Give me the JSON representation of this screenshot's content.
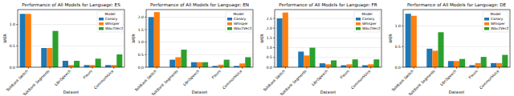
{
  "chart_data": [
    {
      "type": "bar",
      "title": "Performance of All Models for Language: ES",
      "x_label": "Dataset",
      "y_label": "WER",
      "categories": [
        "TalkBank Switch",
        "TalkBank Segments",
        "LibriSpeech",
        "Fleurs",
        "CommonVoice"
      ],
      "series": [
        {
          "name": "Canary",
          "color": "#1f77b4",
          "values": [
            1.25,
            0.45,
            0.15,
            0.05,
            0.05
          ]
        },
        {
          "name": "Whisper",
          "color": "#ff7f0e",
          "values": [
            1.25,
            0.45,
            0.05,
            0.05,
            0.05
          ]
        },
        {
          "name": "Wav2Vec2",
          "color": "#2ca02c",
          "values": [
            null,
            0.85,
            0.15,
            0.2,
            0.3
          ]
        }
      ],
      "ylim": [
        0,
        1.35
      ],
      "yticks": [
        {
          "value": 0,
          "label": "0.0"
        },
        0.5,
        {
          "value": 1,
          "label": "1.0"
        }
      ],
      "grid": true,
      "legend": "upper right",
      "legend_title": "Model"
    },
    {
      "type": "bar",
      "title": "Performance of All Models for Language: EN",
      "x_label": "Dataset",
      "y_label": "WER",
      "categories": [
        "TalkBank Switch",
        "TalkBank Segments",
        "LibriSpeech",
        "Fleurs",
        "CommonVoice"
      ],
      "series": [
        {
          "name": "Canary",
          "color": "#1f77b4",
          "values": [
            2.0,
            0.3,
            0.2,
            0.05,
            0.05
          ]
        },
        {
          "name": "Whisper",
          "color": "#ff7f0e",
          "values": [
            2.2,
            0.4,
            0.2,
            0.1,
            0.15
          ]
        },
        {
          "name": "Wav2Vec2",
          "color": "#2ca02c",
          "values": [
            null,
            0.7,
            0.2,
            0.3,
            0.4
          ]
        }
      ],
      "ylim": [
        0,
        2.3
      ],
      "yticks": [
        {
          "value": 0,
          "label": "0.0"
        },
        0.5,
        {
          "value": 1,
          "label": "1.0"
        },
        1.5,
        {
          "value": 2,
          "label": "2.0"
        }
      ],
      "grid": true,
      "legend": "upper right",
      "legend_title": "Model"
    },
    {
      "type": "bar",
      "title": "Performance of All Models for Language: FR",
      "x_label": "Dataset",
      "y_label": "WER",
      "categories": [
        "TalkBank Switch",
        "TalkBank Segments",
        "LibriSpeech",
        "Fleurs",
        "CommonVoice"
      ],
      "series": [
        {
          "name": "Canary",
          "color": "#1f77b4",
          "values": [
            2.5,
            0.8,
            0.2,
            0.1,
            0.1
          ]
        },
        {
          "name": "Whisper",
          "color": "#ff7f0e",
          "values": [
            2.8,
            0.6,
            0.15,
            0.15,
            0.15
          ]
        },
        {
          "name": "Wav2Vec2",
          "color": "#2ca02c",
          "values": [
            null,
            1.0,
            0.35,
            0.4,
            0.4
          ]
        }
      ],
      "ylim": [
        0,
        2.95
      ],
      "yticks": [
        {
          "value": 0,
          "label": "0.0"
        },
        0.5,
        {
          "value": 1,
          "label": "1.0"
        },
        1.5,
        {
          "value": 2,
          "label": "2.0"
        },
        2.5
      ],
      "grid": true,
      "legend": "upper right",
      "legend_title": "Model"
    },
    {
      "type": "bar",
      "title": "Performance of All Models for Language: DE",
      "x_label": "Dataset",
      "y_label": "WER",
      "categories": [
        "TalkBank Switch",
        "TalkBank Segments",
        "LibriSpeech",
        "Fleurs",
        "CommonVoice"
      ],
      "series": [
        {
          "name": "Canary",
          "color": "#1f77b4",
          "values": [
            1.3,
            0.45,
            0.15,
            0.05,
            0.1
          ]
        },
        {
          "name": "Whisper",
          "color": "#ff7f0e",
          "values": [
            1.25,
            0.4,
            0.15,
            0.1,
            0.1
          ]
        },
        {
          "name": "Wav2Vec2",
          "color": "#2ca02c",
          "values": [
            null,
            0.85,
            0.2,
            0.25,
            0.3
          ]
        }
      ],
      "ylim": [
        0,
        1.4
      ],
      "yticks": [
        {
          "value": 0,
          "label": "0.0"
        },
        0.5,
        {
          "value": 1,
          "label": "1.0"
        }
      ],
      "grid": true,
      "legend": "upper right",
      "legend_title": "Model"
    }
  ]
}
